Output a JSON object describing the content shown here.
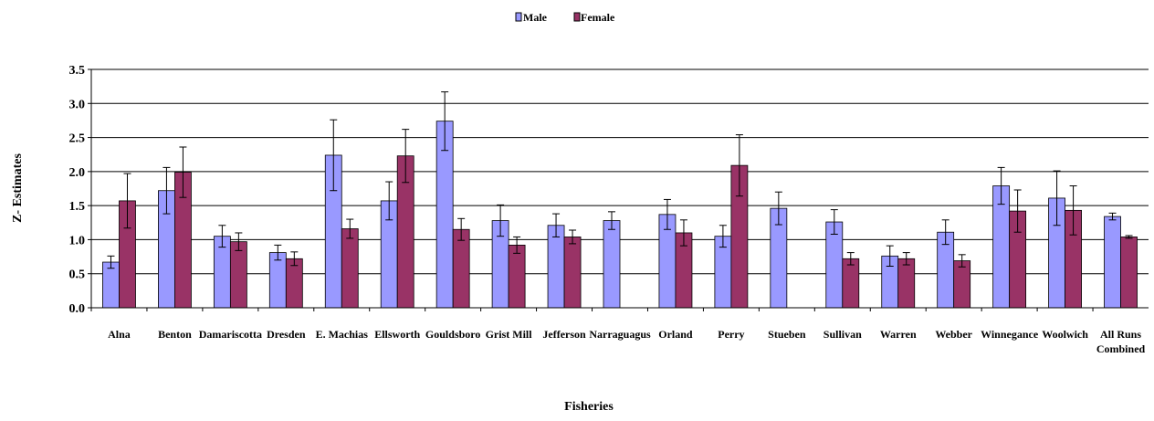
{
  "chart_data": {
    "type": "bar",
    "xlabel": "Fisheries",
    "ylabel": "Z- Estimates",
    "ylim": [
      0,
      3.5
    ],
    "yticks": [
      "0.0",
      "0.5",
      "1.0",
      "1.5",
      "2.0",
      "2.5",
      "3.0",
      "3.5"
    ],
    "grid": true,
    "legend_position": "top-center",
    "categories": [
      [
        "Alna"
      ],
      [
        "Benton"
      ],
      [
        "Damariscotta"
      ],
      [
        "Dresden"
      ],
      [
        "E. Machias"
      ],
      [
        "Ellsworth"
      ],
      [
        "Gouldsboro"
      ],
      [
        "Grist Mill"
      ],
      [
        "Jefferson"
      ],
      [
        "Narraguagus"
      ],
      [
        "Orland"
      ],
      [
        "Perry"
      ],
      [
        "Stueben"
      ],
      [
        "Sullivan"
      ],
      [
        "Warren"
      ],
      [
        "Webber"
      ],
      [
        "Winnegance"
      ],
      [
        "Woolwich"
      ],
      [
        "All Runs",
        "Combined"
      ]
    ],
    "series": [
      {
        "name": "Male",
        "color": "#9999ff",
        "values": [
          0.67,
          1.72,
          1.05,
          0.81,
          2.24,
          1.57,
          2.74,
          1.28,
          1.21,
          1.28,
          1.37,
          1.05,
          1.46,
          1.26,
          0.76,
          1.11,
          1.79,
          1.61,
          1.34
        ],
        "error": [
          0.09,
          0.34,
          0.16,
          0.11,
          0.52,
          0.28,
          0.43,
          0.23,
          0.17,
          0.13,
          0.22,
          0.16,
          0.24,
          0.18,
          0.15,
          0.18,
          0.27,
          0.4,
          0.05
        ]
      },
      {
        "name": "Female",
        "color": "#993366",
        "values": [
          1.57,
          1.99,
          0.97,
          0.72,
          1.16,
          2.23,
          1.15,
          0.92,
          1.04,
          null,
          1.1,
          2.09,
          null,
          0.72,
          0.72,
          0.69,
          1.42,
          1.43,
          1.04
        ],
        "error": [
          0.4,
          0.37,
          0.13,
          0.1,
          0.14,
          0.39,
          0.16,
          0.12,
          0.1,
          null,
          0.19,
          0.45,
          null,
          0.09,
          0.09,
          0.09,
          0.31,
          0.36,
          0.02
        ]
      }
    ]
  }
}
